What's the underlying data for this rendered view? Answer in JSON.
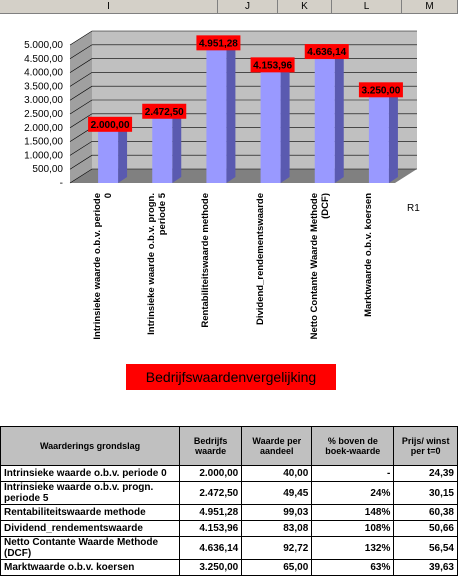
{
  "column_headers": [
    "I",
    "J",
    "K",
    "L",
    "M"
  ],
  "chart_data": {
    "type": "bar",
    "title": "Bedrijfswaardenvergelijking",
    "categories": [
      "Intrinsieke waarde o.b.v. periode 0",
      "Intrinsieke waarde o.b.v. progn. periode 5",
      "Rentabiliteitswaarde methode",
      "Dividend_rendementswaarde",
      "Netto Contante Waarde Methode (DCF)",
      "Marktwaarde o.b.v. koersen"
    ],
    "series": [
      {
        "name": "R1",
        "color": "#9999ff",
        "values": [
          2000,
          2472.5,
          4951.28,
          4153.96,
          4636.14,
          3250
        ],
        "value_labels": [
          "2.000,00",
          "2.472,50",
          "4.951,28",
          "4.153,96",
          "4.636,14",
          "3.250,00"
        ]
      }
    ],
    "ylim": [
      0,
      5000
    ],
    "yticks": [
      {
        "value": 0,
        "label": "-"
      },
      {
        "value": 500,
        "label": "500,00"
      },
      {
        "value": 1000,
        "label": "1.000,00"
      },
      {
        "value": 1500,
        "label": "1.500,00"
      },
      {
        "value": 2000,
        "label": "2.000,00"
      },
      {
        "value": 2500,
        "label": "2.500,00"
      },
      {
        "value": 3000,
        "label": "3.000,00"
      },
      {
        "value": 3500,
        "label": "3.500,00"
      },
      {
        "value": 4000,
        "label": "4.000,00"
      },
      {
        "value": 4500,
        "label": "4.500,00"
      },
      {
        "value": 5000,
        "label": "5.000,00"
      }
    ],
    "grid": true
  },
  "table": {
    "header": [
      "Waarderings grondslag",
      "Bedrijfs waarde",
      "Waarde per aandeel",
      "% boven de boek-waarde",
      "Prijs/ winst per t=0"
    ],
    "rows": [
      [
        "Intrinsieke waarde o.b.v. periode 0",
        "2.000,00",
        "40,00",
        "-",
        "24,39"
      ],
      [
        "Intrinsieke waarde o.b.v. progn. periode 5",
        "2.472,50",
        "49,45",
        "24%",
        "30,15"
      ],
      [
        "Rentabiliteitswaarde methode",
        "4.951,28",
        "99,03",
        "148%",
        "60,38"
      ],
      [
        "Dividend_rendementswaarde",
        "4.153,96",
        "83,08",
        "108%",
        "50,66"
      ],
      [
        "Netto Contante Waarde Methode (DCF)",
        "4.636,14",
        "92,72",
        "132%",
        "56,54"
      ],
      [
        "Marktwaarde o.b.v. koersen",
        "3.250,00",
        "65,00",
        "63%",
        "39,63"
      ]
    ]
  }
}
